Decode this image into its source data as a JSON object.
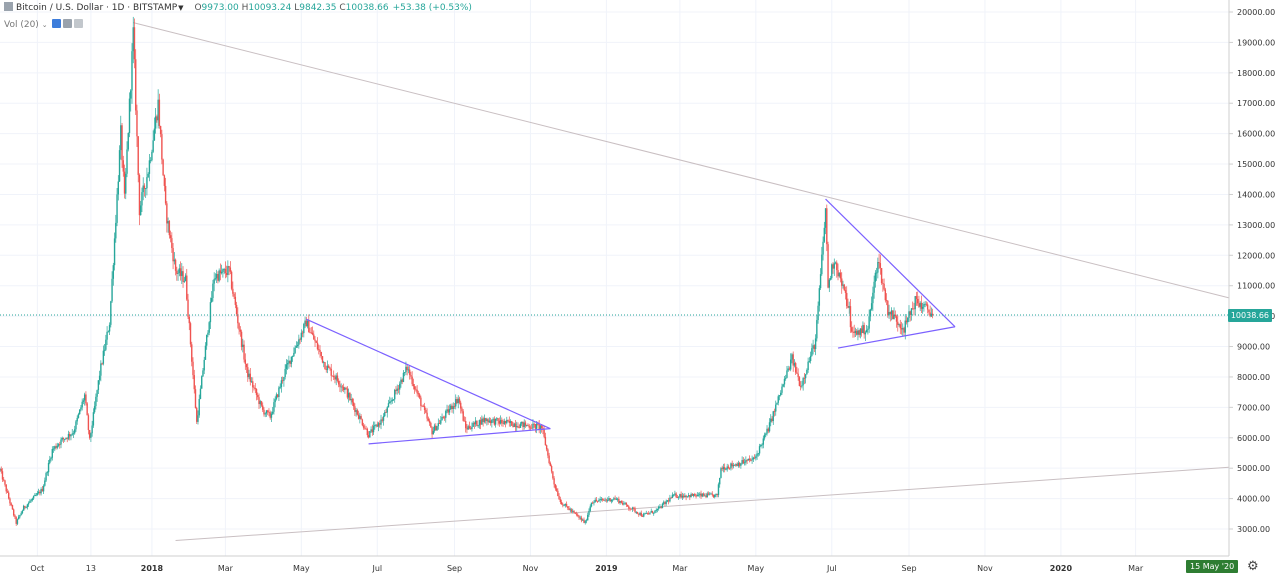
{
  "header": {
    "symbol": "Bitcoin / U.S. Dollar · 1D · BITSTAMP",
    "o_label": "O",
    "o": "9973.00",
    "h_label": "H",
    "h": "10093.24",
    "l_label": "L",
    "l": "9842.35",
    "c_label": "C",
    "c": "10038.66",
    "change": "+53.38 (+0.53%)"
  },
  "volume_label": "Vol (20)",
  "last_price_tag": "10038.66",
  "crosshair_date_tag": "15 May '20",
  "colors": {
    "up": "#26a69a",
    "down": "#ef5350",
    "trendline": "#7b61ff",
    "ray": "#c9bfc2",
    "last_price": "#26a69a"
  },
  "chart_data": {
    "type": "candlestick",
    "title": "Bitcoin / U.S. Dollar · 1D · BITSTAMP",
    "yaxis": {
      "min": 2600,
      "max": 20200,
      "ticks": [
        "3000.00",
        "4000.00",
        "5000.00",
        "6000.00",
        "7000.00",
        "8000.00",
        "9000.00",
        "10000.00",
        "11000.00",
        "12000.00",
        "13000.00",
        "14000.00",
        "15000.00",
        "16000.00",
        "17000.00",
        "18000.00",
        "19000.00",
        "20000.00"
      ]
    },
    "xaxis": {
      "range": [
        "2017-09-01",
        "2020-05-15"
      ],
      "ticks": [
        {
          "label": "Oct",
          "date": "2017-10-01"
        },
        {
          "label": "13",
          "date": "2017-11-13"
        },
        {
          "label": "2018",
          "date": "2018-01-01",
          "bold": true
        },
        {
          "label": "Mar",
          "date": "2018-03-01"
        },
        {
          "label": "May",
          "date": "2018-05-01"
        },
        {
          "label": "Jul",
          "date": "2018-07-01"
        },
        {
          "label": "Sep",
          "date": "2018-09-01"
        },
        {
          "label": "Nov",
          "date": "2018-11-01"
        },
        {
          "label": "2019",
          "date": "2019-01-01",
          "bold": true
        },
        {
          "label": "Mar",
          "date": "2019-03-01"
        },
        {
          "label": "May",
          "date": "2019-05-01"
        },
        {
          "label": "Jul",
          "date": "2019-07-01"
        },
        {
          "label": "Sep",
          "date": "2019-09-01"
        },
        {
          "label": "Nov",
          "date": "2019-11-01"
        },
        {
          "label": "2020",
          "date": "2020-01-01",
          "bold": true
        },
        {
          "label": "Mar",
          "date": "2020-03-01"
        }
      ]
    },
    "price_path": [
      [
        "2017-09-01",
        4950
      ],
      [
        "2017-09-14",
        3200
      ],
      [
        "2017-09-20",
        3700
      ],
      [
        "2017-10-05",
        4300
      ],
      [
        "2017-10-13",
        5600
      ],
      [
        "2017-10-20",
        5900
      ],
      [
        "2017-10-30",
        6200
      ],
      [
        "2017-11-08",
        7400
      ],
      [
        "2017-11-12",
        5900
      ],
      [
        "2017-11-20",
        8100
      ],
      [
        "2017-11-28",
        9800
      ],
      [
        "2017-12-07",
        16000
      ],
      [
        "2017-12-10",
        13800
      ],
      [
        "2017-12-17",
        19300
      ],
      [
        "2017-12-22",
        13500
      ],
      [
        "2017-12-29",
        14800
      ],
      [
        "2018-01-06",
        17000
      ],
      [
        "2018-01-12",
        13500
      ],
      [
        "2018-01-20",
        11500
      ],
      [
        "2018-01-28",
        11200
      ],
      [
        "2018-02-06",
        6500
      ],
      [
        "2018-02-12",
        8600
      ],
      [
        "2018-02-20",
        11300
      ],
      [
        "2018-03-04",
        11500
      ],
      [
        "2018-03-18",
        8200
      ],
      [
        "2018-03-31",
        6900
      ],
      [
        "2018-04-06",
        6700
      ],
      [
        "2018-04-18",
        8200
      ],
      [
        "2018-05-05",
        9800
      ],
      [
        "2018-05-20",
        8400
      ],
      [
        "2018-06-05",
        7600
      ],
      [
        "2018-06-24",
        6100
      ],
      [
        "2018-07-05",
        6600
      ],
      [
        "2018-07-25",
        8300
      ],
      [
        "2018-08-14",
        6200
      ],
      [
        "2018-09-04",
        7300
      ],
      [
        "2018-09-10",
        6300
      ],
      [
        "2018-09-25",
        6600
      ],
      [
        "2018-10-10",
        6500
      ],
      [
        "2018-11-10",
        6350
      ],
      [
        "2018-11-20",
        4500
      ],
      [
        "2018-11-25",
        3900
      ],
      [
        "2018-12-15",
        3200
      ],
      [
        "2018-12-20",
        3900
      ],
      [
        "2019-01-08",
        4000
      ],
      [
        "2019-01-30",
        3450
      ],
      [
        "2019-02-10",
        3600
      ],
      [
        "2019-02-24",
        4100
      ],
      [
        "2019-03-31",
        4100
      ],
      [
        "2019-04-03",
        5000
      ],
      [
        "2019-04-30",
        5300
      ],
      [
        "2019-05-11",
        6300
      ],
      [
        "2019-05-30",
        8600
      ],
      [
        "2019-06-06",
        7700
      ],
      [
        "2019-06-18",
        9200
      ],
      [
        "2019-06-26",
        13500
      ],
      [
        "2019-06-28",
        11000
      ],
      [
        "2019-07-03",
        11900
      ],
      [
        "2019-07-15",
        10200
      ],
      [
        "2019-07-17",
        9400
      ],
      [
        "2019-07-30",
        9600
      ],
      [
        "2019-08-07",
        11900
      ],
      [
        "2019-08-15",
        10200
      ],
      [
        "2019-08-28",
        9600
      ],
      [
        "2019-09-06",
        10500
      ],
      [
        "2019-09-18",
        10150
      ],
      [
        "2019-09-20",
        10038
      ]
    ],
    "trendlines": [
      {
        "name": "ray-resistance",
        "from": [
          "2017-12-17",
          19650
        ],
        "to": [
          "2020-05-15",
          10600
        ]
      },
      {
        "name": "ray-support",
        "from": [
          "2018-01-20",
          2620
        ],
        "to": [
          "2020-05-15",
          5030
        ]
      },
      {
        "name": "triangle-2018-upper",
        "from": [
          "2018-05-05",
          9900
        ],
        "to": [
          "2018-11-17",
          6300
        ]
      },
      {
        "name": "triangle-2018-lower",
        "from": [
          "2018-06-24",
          5800
        ],
        "to": [
          "2018-11-17",
          6300
        ]
      },
      {
        "name": "triangle-2019-upper",
        "from": [
          "2019-06-26",
          13850
        ],
        "to": [
          "2019-10-08",
          9650
        ]
      },
      {
        "name": "triangle-2019-lower",
        "from": [
          "2019-07-06",
          8950
        ],
        "to": [
          "2019-10-08",
          9650
        ]
      }
    ],
    "last_price": 10038.66,
    "grid": true,
    "legend": "top-left"
  }
}
